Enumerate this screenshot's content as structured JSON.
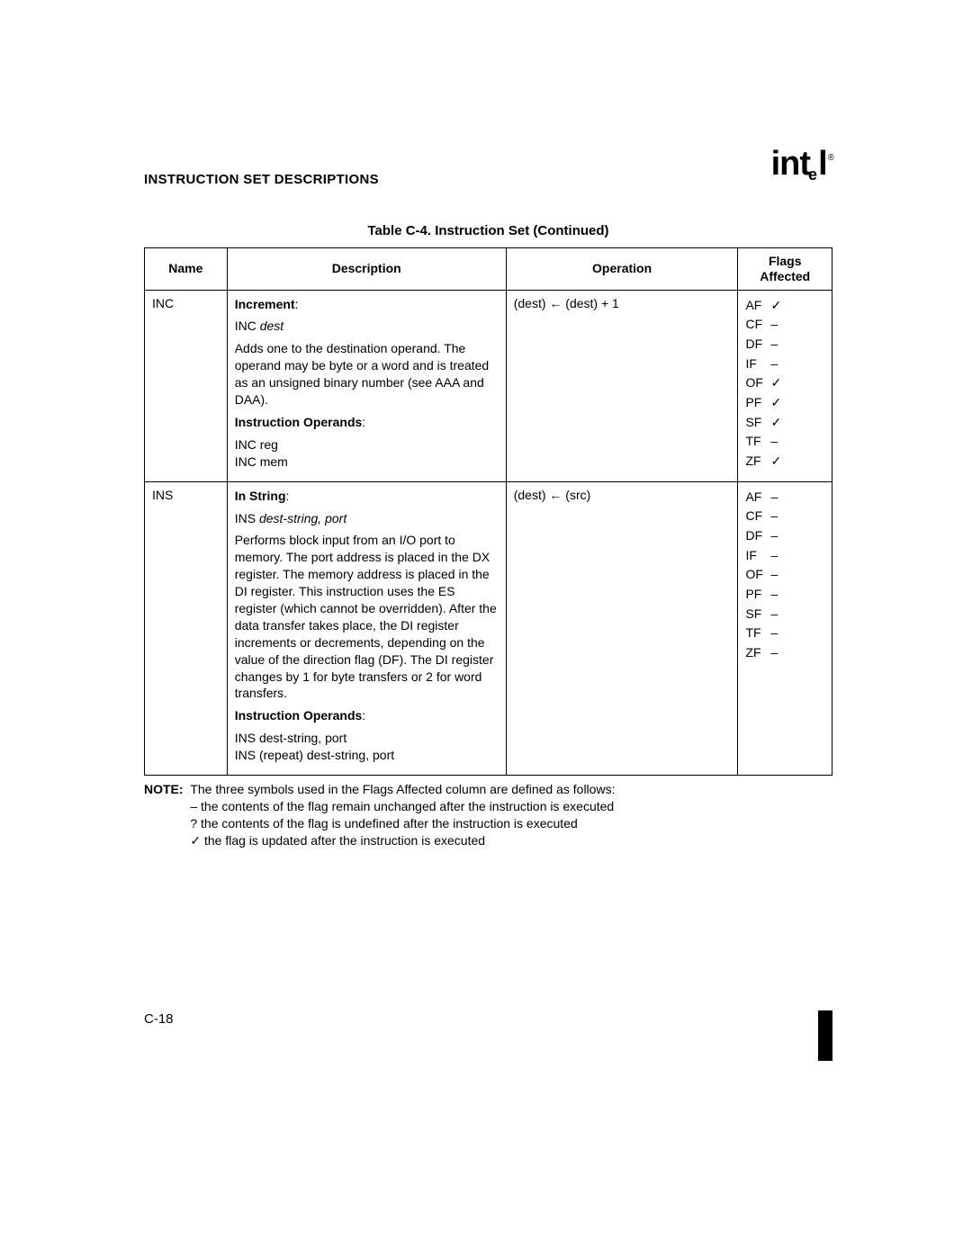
{
  "header": {
    "section_title": "INSTRUCTION SET DESCRIPTIONS",
    "logo_text": "int",
    "logo_sub": "e",
    "logo_sub2": "l",
    "logo_reg": "®"
  },
  "table": {
    "caption": "Table C-4.  Instruction Set (Continued)",
    "columns": {
      "name": "Name",
      "description": "Description",
      "operation": "Operation",
      "flags": "Flags Affected"
    },
    "rows": [
      {
        "name": "INC",
        "desc": {
          "title": "Increment",
          "syntax_pre": "INC ",
          "syntax_it": "dest",
          "body": "Adds one to the destination operand. The operand may be byte or a word and is treated as an unsigned binary number (see AAA and DAA).",
          "operands_label": "Instruction Operands",
          "operands": "INC reg\nINC mem"
        },
        "operation": "(dest) ← (dest) + 1",
        "flags": [
          {
            "n": "AF",
            "s": "✓"
          },
          {
            "n": "CF",
            "s": "–"
          },
          {
            "n": "DF",
            "s": "–"
          },
          {
            "n": "IF",
            "s": "–"
          },
          {
            "n": "OF",
            "s": "✓"
          },
          {
            "n": "PF",
            "s": "✓"
          },
          {
            "n": "SF",
            "s": "✓"
          },
          {
            "n": "TF",
            "s": "–"
          },
          {
            "n": "ZF",
            "s": "✓"
          }
        ]
      },
      {
        "name": "INS",
        "desc": {
          "title": "In String",
          "syntax_pre": "INS ",
          "syntax_it": "dest-string, port",
          "body": "Performs block input from an I/O port to memory. The port address is placed in the DX register. The memory address is placed in the DI register. This instruction uses the ES register (which cannot be overridden). After the data transfer takes place, the DI register increments or decrements, depending on the value of the direction flag (DF). The DI register changes by 1 for byte transfers or 2 for word transfers.",
          "operands_label": "Instruction Operands",
          "operands": "INS dest-string, port\nINS (repeat) dest-string, port"
        },
        "operation": "(dest) ← (src)",
        "flags": [
          {
            "n": "AF",
            "s": "–"
          },
          {
            "n": "CF",
            "s": "–"
          },
          {
            "n": "DF",
            "s": "–"
          },
          {
            "n": "IF",
            "s": "–"
          },
          {
            "n": "OF",
            "s": "–"
          },
          {
            "n": "PF",
            "s": "–"
          },
          {
            "n": "SF",
            "s": "–"
          },
          {
            "n": "TF",
            "s": "–"
          },
          {
            "n": "ZF",
            "s": "–"
          }
        ]
      }
    ]
  },
  "note": {
    "label": "NOTE:",
    "intro": "The three symbols used in the Flags Affected column are defined as follows:",
    "l1": "– the contents of the flag remain unchanged after the instruction is executed",
    "l2": "? the contents of the flag is undefined after the instruction is executed",
    "l3": "✓ the flag is updated after the instruction is executed"
  },
  "page_number": "C-18"
}
